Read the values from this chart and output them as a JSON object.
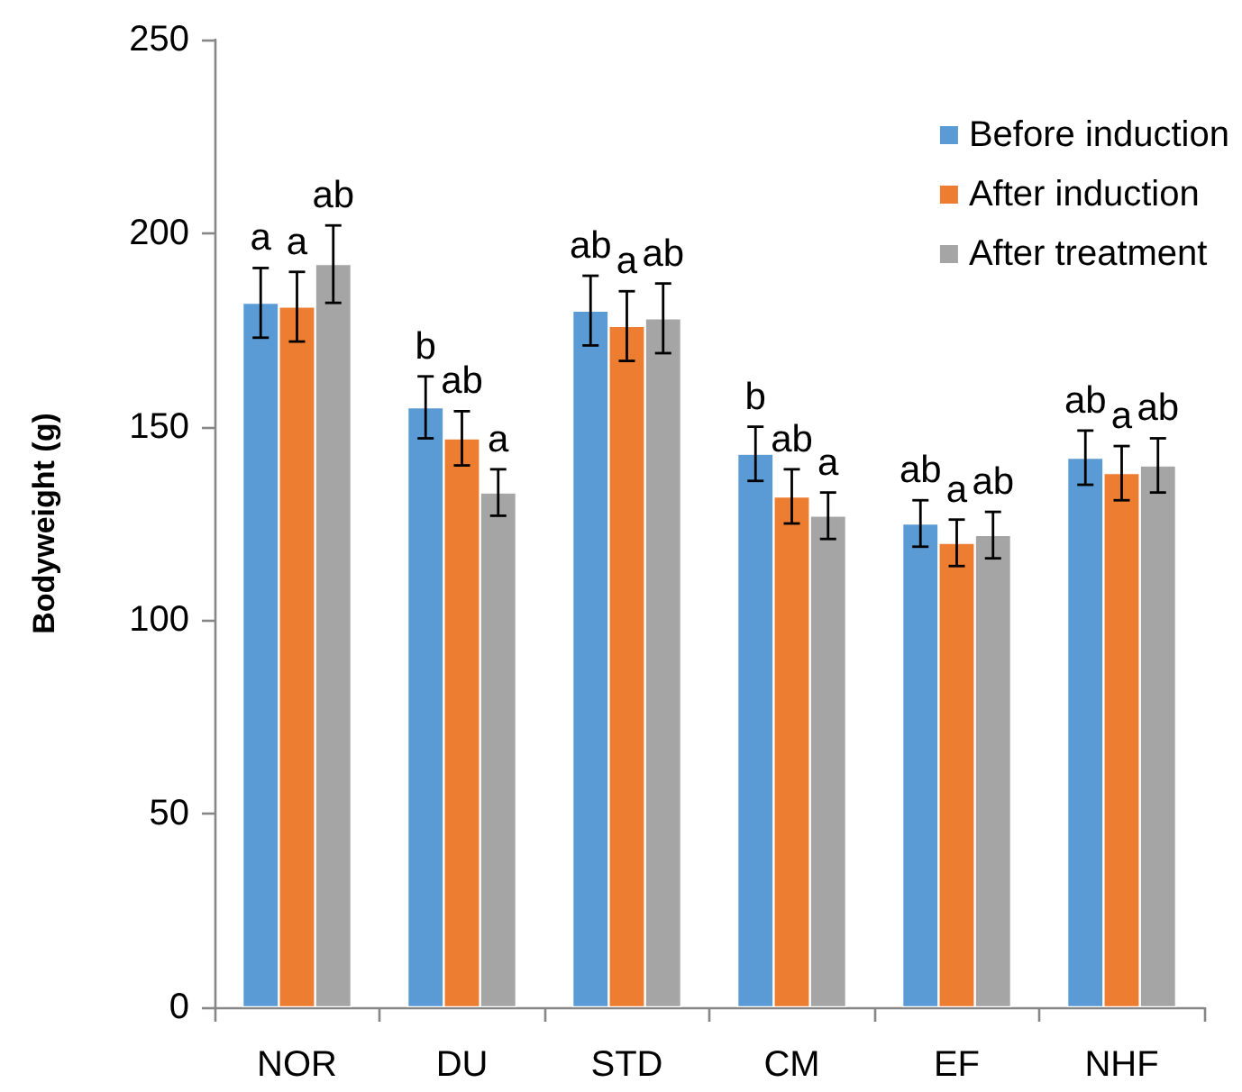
{
  "chart_data": {
    "type": "bar",
    "ylabel": "Bodyweight (g)",
    "categories": [
      "NOR",
      "DU",
      "STD",
      "CM",
      "EF",
      "NHF"
    ],
    "ylim": [
      0,
      250
    ],
    "yticks": [
      0,
      50,
      100,
      150,
      200,
      250
    ],
    "grid": false,
    "legend": "top right",
    "series": [
      {
        "name": "Before induction",
        "color": "#5b9bd5",
        "values": [
          182,
          155,
          180,
          143,
          125,
          142
        ],
        "errors": [
          9,
          8,
          9,
          7,
          6,
          7
        ],
        "value_labels": [
          "a",
          "b",
          "ab",
          "b",
          "ab",
          "ab"
        ]
      },
      {
        "name": "After induction",
        "color": "#ed7d31",
        "values": [
          181,
          147,
          176,
          132,
          120,
          138
        ],
        "errors": [
          9,
          7,
          9,
          7,
          6,
          7
        ],
        "value_labels": [
          "a",
          "ab",
          "a",
          "ab",
          "a",
          "a"
        ]
      },
      {
        "name": "After treatment",
        "color": "#a5a5a5",
        "values": [
          192,
          133,
          178,
          127,
          122,
          140
        ],
        "errors": [
          10,
          6,
          9,
          6,
          6,
          7
        ],
        "value_labels": [
          "ab",
          "a",
          "ab",
          "a",
          "ab",
          "ab"
        ]
      }
    ]
  }
}
